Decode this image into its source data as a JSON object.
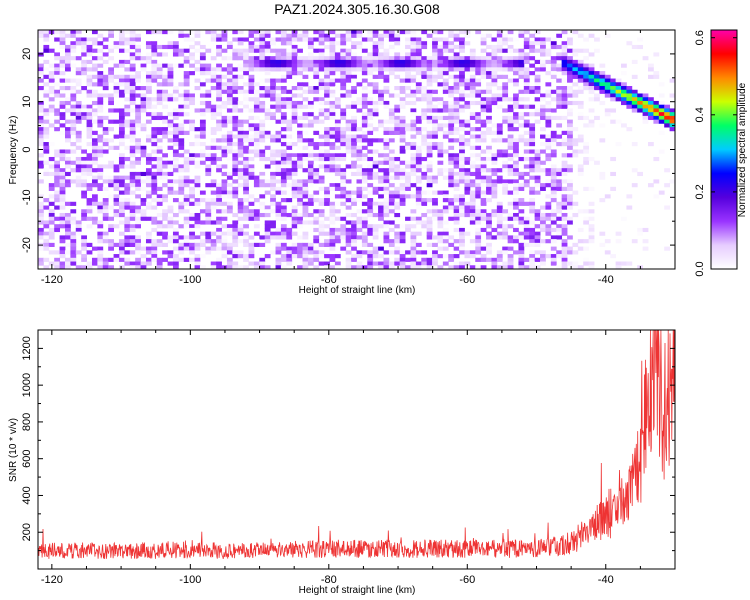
{
  "title": "PAZ1.2024.305.16.30.G08",
  "chart_data": [
    {
      "type": "heatmap",
      "title": "",
      "xlabel": "Height of straight line (km)",
      "ylabel": "Frequency (Hz)",
      "xlim": [
        -122,
        -30
      ],
      "ylim": [
        -25,
        25
      ],
      "x_ticks": [
        -120,
        -100,
        -80,
        -60,
        -40
      ],
      "y_ticks": [
        -20,
        -10,
        0,
        10,
        20
      ],
      "colorbar": {
        "label": "Normalized spectral amplitude",
        "range": [
          0.0,
          0.62
        ],
        "ticks": [
          0.0,
          0.2,
          0.4,
          0.6
        ],
        "colors": [
          "#ffffff",
          "#e6ccff",
          "#9933ff",
          "#5500dd",
          "#0000ff",
          "#00ccff",
          "#00ff66",
          "#ccff00",
          "#ff8800",
          "#ff0000",
          "#ff00aa"
        ]
      },
      "features": [
        {
          "label": "",
          "x_range": [
            -92,
            -52
          ],
          "frequency": 18,
          "amplitude": 0.25
        },
        {
          "label": "",
          "x_range": [
            -46,
            -30
          ],
          "frequency_start": 18,
          "frequency_end": 6,
          "amplitude_peak": 0.62
        }
      ]
    },
    {
      "type": "line",
      "title": "",
      "xlabel": "Height of straight line (km)",
      "ylabel": "SNR (10 * v/v)",
      "xlim": [
        -122,
        -30
      ],
      "ylim": [
        0,
        1300
      ],
      "x_ticks": [
        -120,
        -100,
        -80,
        -60,
        -40
      ],
      "y_ticks": [
        200,
        400,
        600,
        800,
        1000,
        1200
      ],
      "color": "#ee3333",
      "x": [
        -122,
        -110,
        -100,
        -90,
        -80,
        -70,
        -60,
        -50,
        -46,
        -44,
        -42,
        -40,
        -38,
        -36,
        -35,
        -34,
        -33,
        -32.5,
        -32,
        -31,
        -30
      ],
      "y": [
        100,
        100,
        100,
        100,
        110,
        110,
        110,
        110,
        130,
        170,
        220,
        280,
        340,
        450,
        600,
        900,
        1230,
        1150,
        800,
        1000,
        1020
      ]
    }
  ]
}
